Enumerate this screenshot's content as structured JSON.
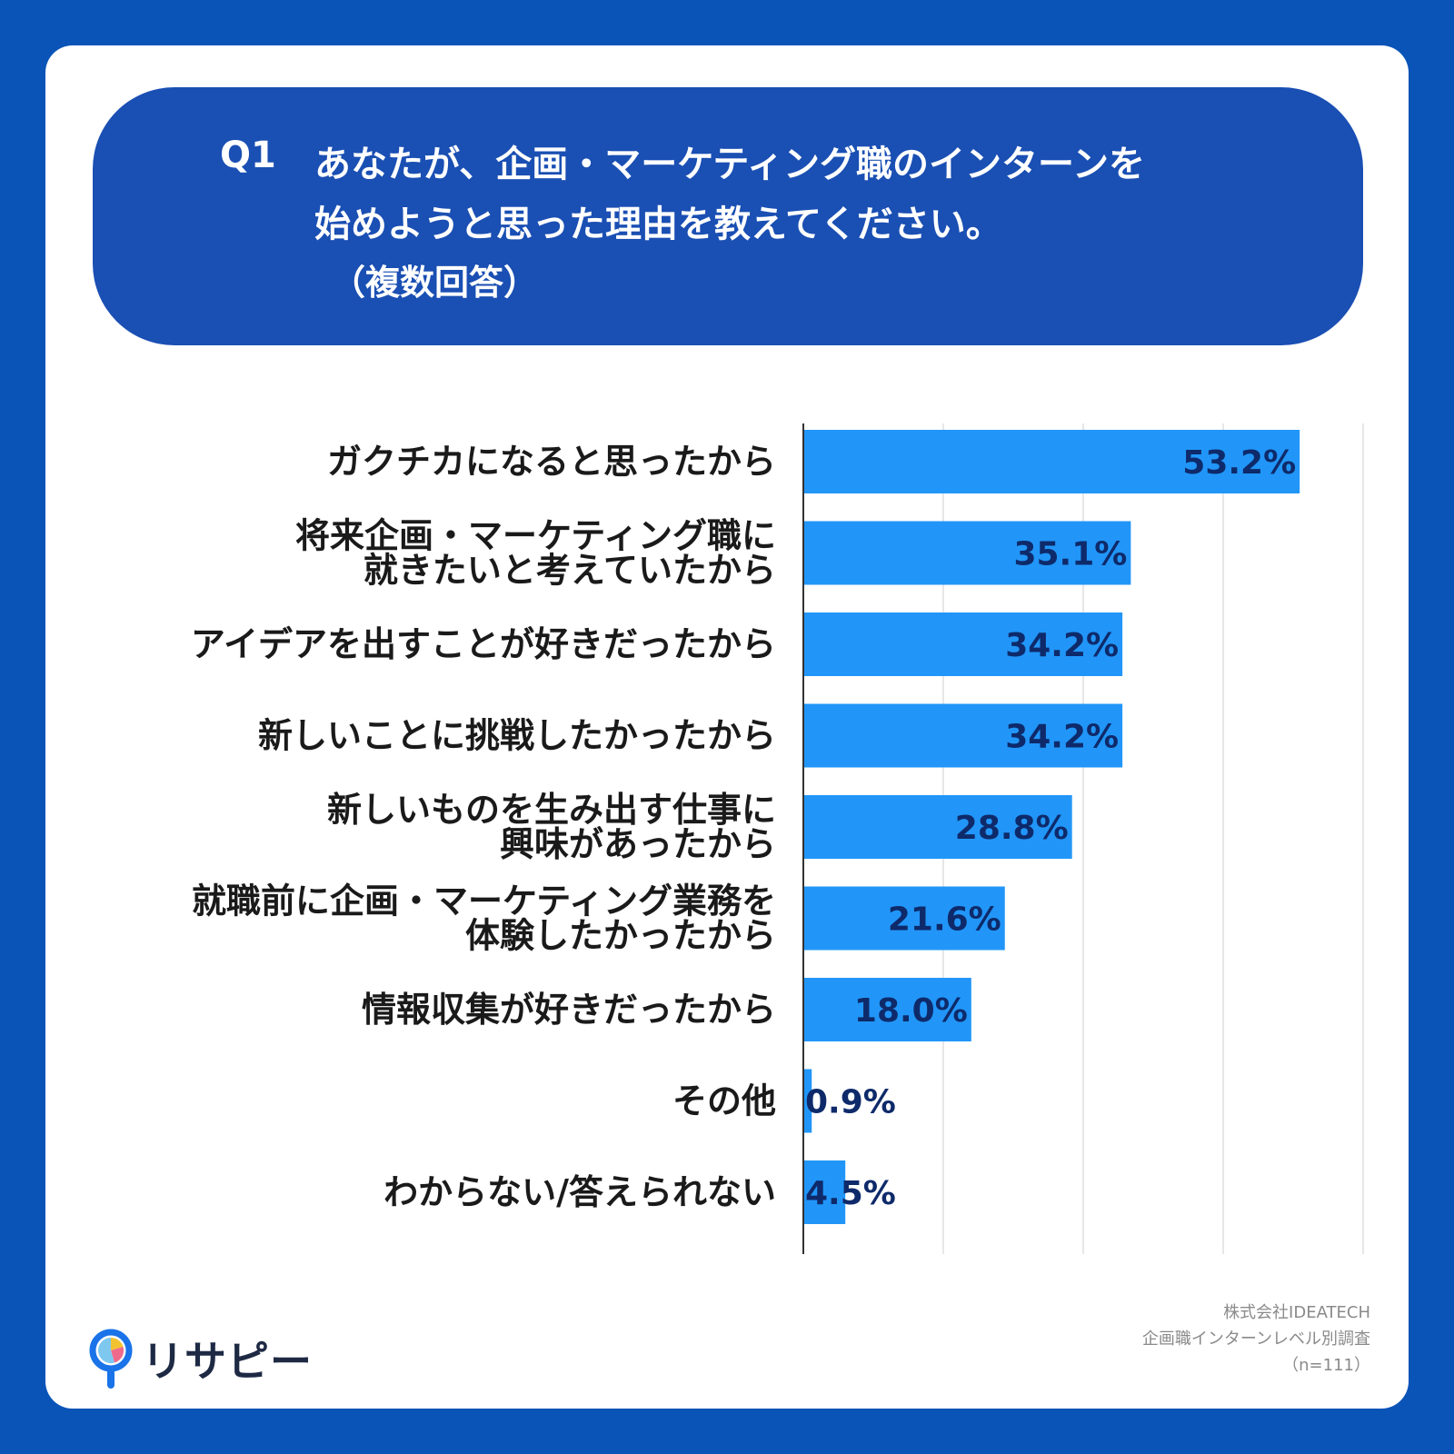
{
  "header": {
    "q_label": "Q1",
    "q_line1": "あなたが、企画・マーケティング職のインターンを",
    "q_line2": "始めようと思った理由を教えてください。",
    "q_note": "（複数回答）"
  },
  "colors": {
    "background": "#0a54b8",
    "header": "#1a4fb3",
    "bar": "#2196f8",
    "value_text": "#0e2a6a",
    "grid": "#cfcfcf"
  },
  "chart_data": {
    "type": "bar",
    "orientation": "horizontal",
    "categories": [
      [
        "ガクチカになると思ったから"
      ],
      [
        "将来企画・マーケティング職に",
        "就きたいと考えていたから"
      ],
      [
        "アイデアを出すことが好きだったから"
      ],
      [
        "新しいことに挑戦したかったから"
      ],
      [
        "新しいものを生み出す仕事に",
        "興味があったから"
      ],
      [
        "就職前に企画・マーケティング業務を",
        "体験したかったから"
      ],
      [
        "情報収集が好きだったから"
      ],
      [
        "その他"
      ],
      [
        "わからない/答えられない"
      ]
    ],
    "values": [
      53.2,
      35.1,
      34.2,
      34.2,
      28.8,
      21.6,
      18.0,
      0.9,
      4.5
    ],
    "value_labels": [
      "53.2%",
      "35.1%",
      "34.2%",
      "34.2%",
      "28.8%",
      "21.6%",
      "18.0%",
      "0.9%",
      "4.5%"
    ],
    "xlim": [
      0,
      60
    ],
    "grid_step": 15,
    "grid": true,
    "title": "",
    "xlabel": "",
    "ylabel": ""
  },
  "logo": {
    "text": "リサピー",
    "icon": "magnifier-pie-icon"
  },
  "source": {
    "line1": "株式会社IDEATECH",
    "line2": "企画職インターンレベル別調査",
    "line3": "（n=111）"
  }
}
